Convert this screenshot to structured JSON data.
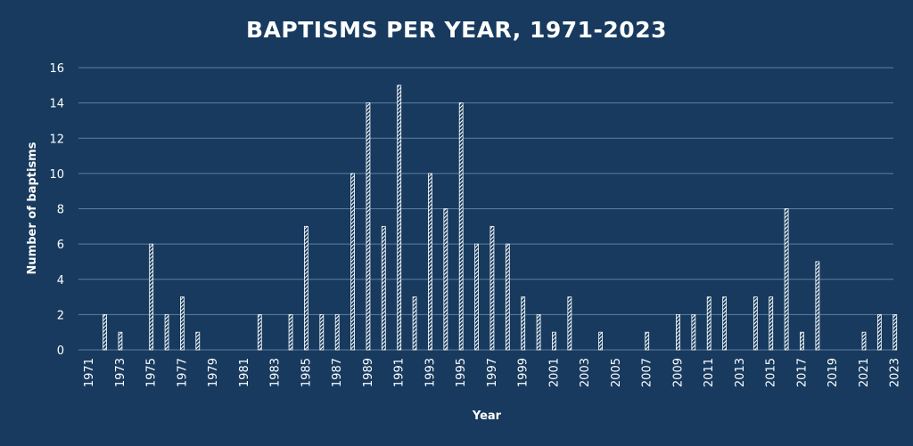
{
  "chart_data": {
    "type": "bar",
    "title": "BAPTISMS PER YEAR, 1971-2023",
    "xlabel": "Year",
    "ylabel": "Number of baptisms",
    "ylim": [
      0,
      16
    ],
    "yticks": [
      0,
      2,
      4,
      6,
      8,
      10,
      12,
      14,
      16
    ],
    "grid": true,
    "legend": "none",
    "bar_color": "#ffffff",
    "background": "#173a5e",
    "gridline_color": "#5d7fa3",
    "x_tick_labels": [
      "1971",
      "1973",
      "1975",
      "1977",
      "1979",
      "1981",
      "1983",
      "1985",
      "1987",
      "1989",
      "1991",
      "1993",
      "1995",
      "1997",
      "1999",
      "2001",
      "2003",
      "2005",
      "2007",
      "2009",
      "2011",
      "2013",
      "2015",
      "2017",
      "2019",
      "2021",
      "2023"
    ],
    "categories": [
      1971,
      1972,
      1973,
      1974,
      1975,
      1976,
      1977,
      1978,
      1979,
      1980,
      1981,
      1982,
      1983,
      1984,
      1985,
      1986,
      1987,
      1988,
      1989,
      1990,
      1991,
      1992,
      1993,
      1994,
      1995,
      1996,
      1997,
      1998,
      1999,
      2000,
      2001,
      2002,
      2003,
      2004,
      2005,
      2006,
      2007,
      2008,
      2009,
      2010,
      2011,
      2012,
      2013,
      2014,
      2015,
      2016,
      2017,
      2018,
      2019,
      2020,
      2021,
      2022,
      2023
    ],
    "values": [
      0,
      2,
      1,
      0,
      6,
      2,
      3,
      1,
      0,
      0,
      0,
      2,
      0,
      2,
      7,
      2,
      2,
      10,
      14,
      7,
      15,
      3,
      10,
      8,
      14,
      6,
      7,
      6,
      3,
      2,
      1,
      3,
      0,
      1,
      0,
      0,
      1,
      0,
      2,
      2,
      3,
      3,
      0,
      3,
      3,
      8,
      1,
      5,
      0,
      0,
      1,
      2,
      2
    ]
  }
}
